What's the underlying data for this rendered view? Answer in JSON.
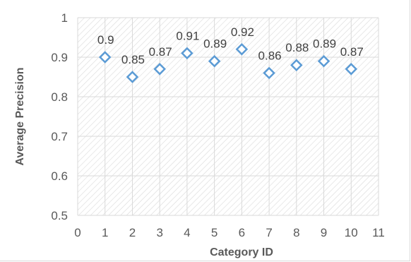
{
  "chart_data": {
    "type": "scatter",
    "xlabel": "Category ID",
    "ylabel": "Average Precision",
    "xlim": [
      0,
      11
    ],
    "ylim": [
      0.5,
      1
    ],
    "xticks": [
      0,
      1,
      2,
      3,
      4,
      5,
      6,
      7,
      8,
      9,
      10,
      11
    ],
    "yticks": [
      0.5,
      0.6,
      0.7,
      0.8,
      0.9,
      1
    ],
    "grid": true,
    "series": [
      {
        "x": [
          1,
          2,
          3,
          4,
          5,
          6,
          7,
          8,
          9,
          10
        ],
        "y": [
          0.9,
          0.85,
          0.87,
          0.91,
          0.89,
          0.92,
          0.86,
          0.88,
          0.89,
          0.87
        ],
        "labels": [
          "0.9",
          "0.85",
          "0.87",
          "0.91",
          "0.89",
          "0.92",
          "0.86",
          "0.88",
          "0.89",
          "0.87"
        ]
      }
    ],
    "marker_color": "#5b9bd5",
    "hatch_color": "#d9d9d9",
    "grid_color": "#d9d9d9"
  }
}
